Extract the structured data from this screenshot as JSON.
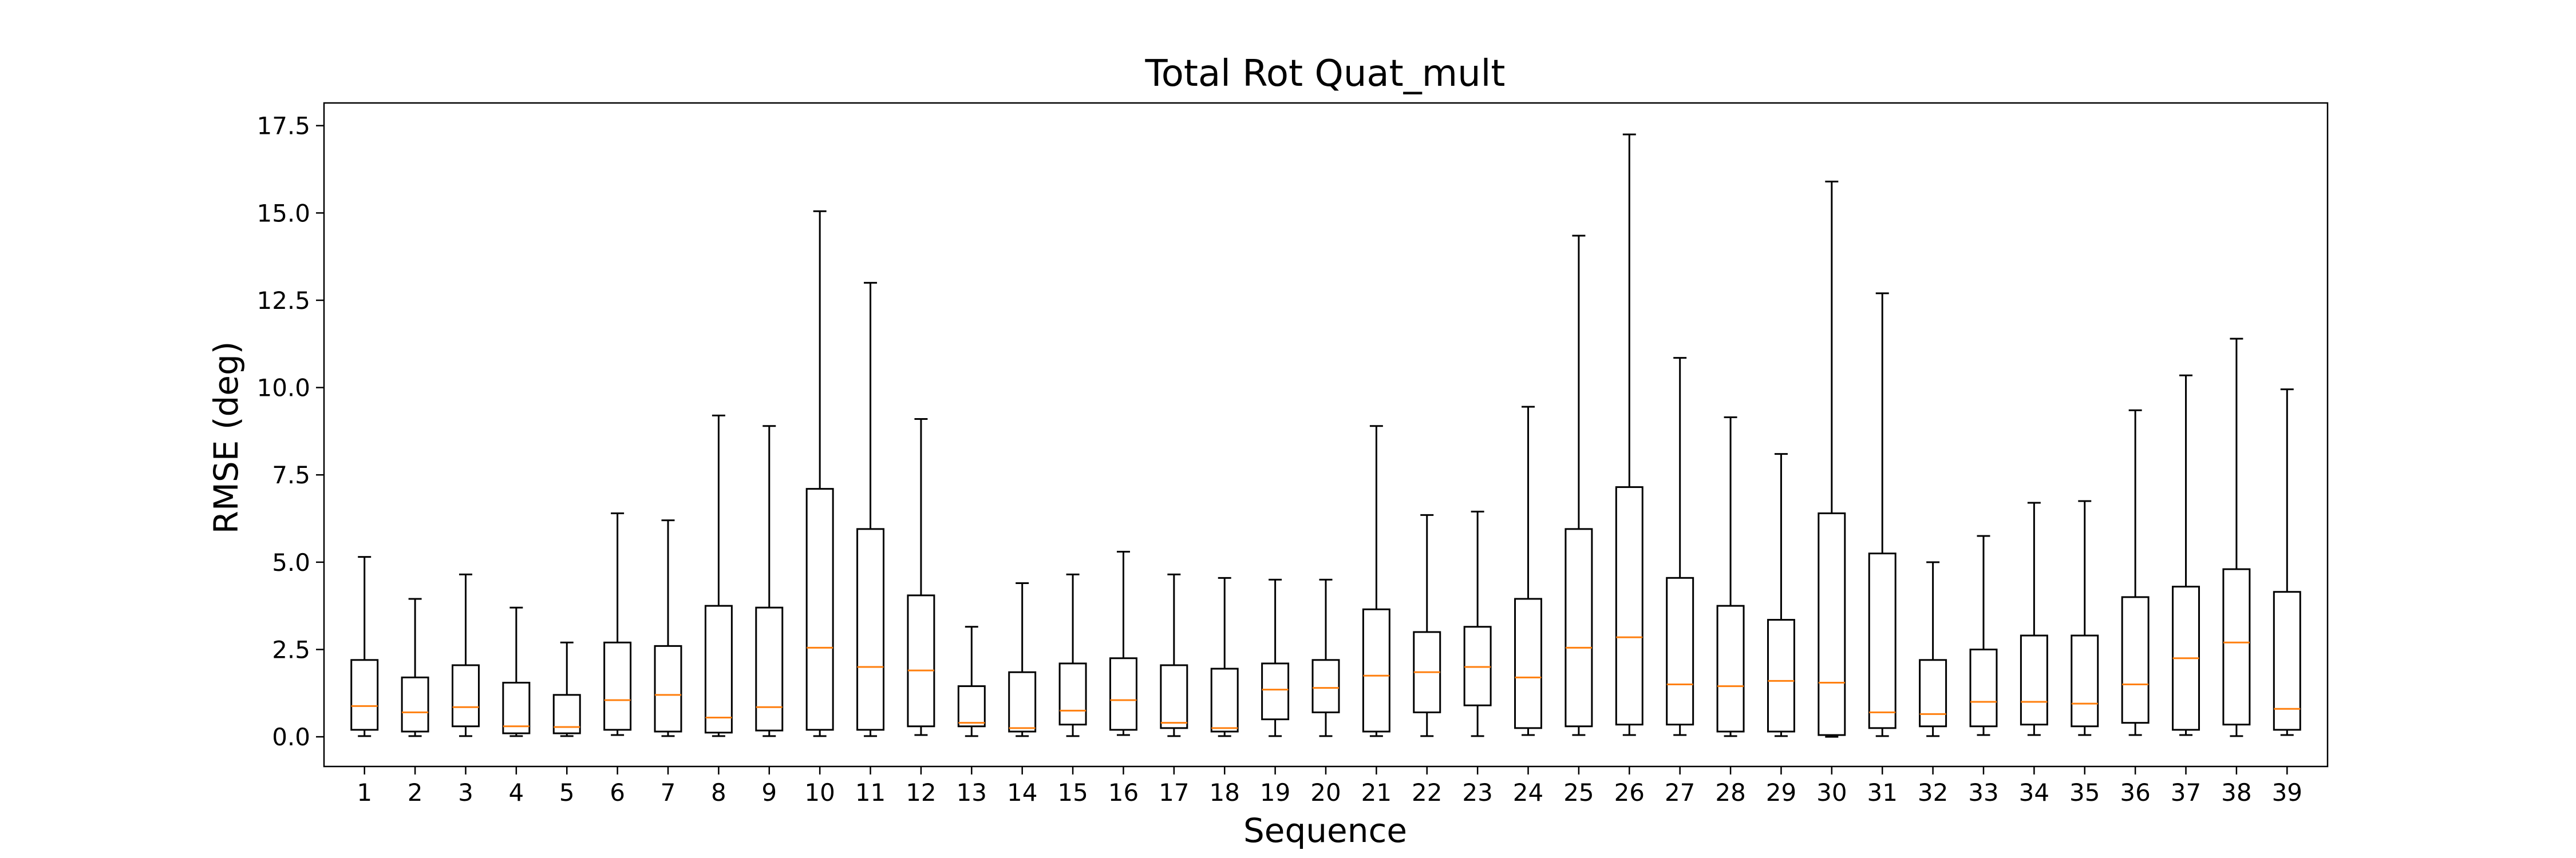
{
  "colors": {
    "box": "#000000",
    "median": "#ff7f0e",
    "background": "#ffffff"
  },
  "chart_data": {
    "type": "box",
    "title": "Total Rot Quat_mult",
    "xlabel": "Sequence",
    "ylabel": "RMSE (deg)",
    "ylim": [
      -0.85,
      18.15
    ],
    "yticks": [
      0.0,
      2.5,
      5.0,
      7.5,
      10.0,
      12.5,
      15.0,
      17.5
    ],
    "ytick_labels": [
      "0.0",
      "2.5",
      "5.0",
      "7.5",
      "10.0",
      "12.5",
      "15.0",
      "17.5"
    ],
    "grid": false,
    "legend": "none",
    "categories": [
      "1",
      "2",
      "3",
      "4",
      "5",
      "6",
      "7",
      "8",
      "9",
      "10",
      "11",
      "12",
      "13",
      "14",
      "15",
      "16",
      "17",
      "18",
      "19",
      "20",
      "21",
      "22",
      "23",
      "24",
      "25",
      "26",
      "27",
      "28",
      "29",
      "30",
      "31",
      "32",
      "33",
      "34",
      "35",
      "36",
      "37",
      "38",
      "39"
    ],
    "boxes": [
      {
        "whislo": 0.02,
        "q1": 0.2,
        "med": 0.88,
        "q3": 2.2,
        "whishi": 5.15
      },
      {
        "whislo": 0.02,
        "q1": 0.15,
        "med": 0.7,
        "q3": 1.7,
        "whishi": 3.95
      },
      {
        "whislo": 0.02,
        "q1": 0.3,
        "med": 0.85,
        "q3": 2.05,
        "whishi": 4.65
      },
      {
        "whislo": 0.02,
        "q1": 0.1,
        "med": 0.3,
        "q3": 1.55,
        "whishi": 3.7
      },
      {
        "whislo": 0.02,
        "q1": 0.1,
        "med": 0.28,
        "q3": 1.2,
        "whishi": 2.7
      },
      {
        "whislo": 0.05,
        "q1": 0.2,
        "med": 1.05,
        "q3": 2.7,
        "whishi": 6.4
      },
      {
        "whislo": 0.02,
        "q1": 0.15,
        "med": 1.2,
        "q3": 2.6,
        "whishi": 6.2
      },
      {
        "whislo": 0.02,
        "q1": 0.12,
        "med": 0.55,
        "q3": 3.75,
        "whishi": 9.2
      },
      {
        "whislo": 0.02,
        "q1": 0.18,
        "med": 0.85,
        "q3": 3.7,
        "whishi": 8.9
      },
      {
        "whislo": 0.02,
        "q1": 0.2,
        "med": 2.55,
        "q3": 7.1,
        "whishi": 15.05
      },
      {
        "whislo": 0.02,
        "q1": 0.2,
        "med": 2.0,
        "q3": 5.95,
        "whishi": 13.0
      },
      {
        "whislo": 0.05,
        "q1": 0.3,
        "med": 1.9,
        "q3": 4.05,
        "whishi": 9.1
      },
      {
        "whislo": 0.02,
        "q1": 0.3,
        "med": 0.4,
        "q3": 1.45,
        "whishi": 3.15
      },
      {
        "whislo": 0.02,
        "q1": 0.15,
        "med": 0.25,
        "q3": 1.85,
        "whishi": 4.4
      },
      {
        "whislo": 0.02,
        "q1": 0.35,
        "med": 0.75,
        "q3": 2.1,
        "whishi": 4.65
      },
      {
        "whislo": 0.05,
        "q1": 0.2,
        "med": 1.05,
        "q3": 2.25,
        "whishi": 5.3
      },
      {
        "whislo": 0.02,
        "q1": 0.25,
        "med": 0.4,
        "q3": 2.05,
        "whishi": 4.65
      },
      {
        "whislo": 0.02,
        "q1": 0.15,
        "med": 0.25,
        "q3": 1.95,
        "whishi": 4.55
      },
      {
        "whislo": 0.02,
        "q1": 0.5,
        "med": 1.35,
        "q3": 2.1,
        "whishi": 4.5
      },
      {
        "whislo": 0.02,
        "q1": 0.7,
        "med": 1.4,
        "q3": 2.2,
        "whishi": 4.5
      },
      {
        "whislo": 0.02,
        "q1": 0.15,
        "med": 1.75,
        "q3": 3.65,
        "whishi": 8.9
      },
      {
        "whislo": 0.02,
        "q1": 0.7,
        "med": 1.85,
        "q3": 3.0,
        "whishi": 6.35
      },
      {
        "whislo": 0.02,
        "q1": 0.9,
        "med": 2.0,
        "q3": 3.15,
        "whishi": 6.45
      },
      {
        "whislo": 0.05,
        "q1": 0.25,
        "med": 1.7,
        "q3": 3.95,
        "whishi": 9.45
      },
      {
        "whislo": 0.05,
        "q1": 0.3,
        "med": 2.55,
        "q3": 5.95,
        "whishi": 14.35
      },
      {
        "whislo": 0.05,
        "q1": 0.35,
        "med": 2.85,
        "q3": 7.15,
        "whishi": 17.25
      },
      {
        "whislo": 0.05,
        "q1": 0.35,
        "med": 1.5,
        "q3": 4.55,
        "whishi": 10.85
      },
      {
        "whislo": 0.02,
        "q1": 0.15,
        "med": 1.45,
        "q3": 3.75,
        "whishi": 9.15
      },
      {
        "whislo": 0.02,
        "q1": 0.15,
        "med": 1.6,
        "q3": 3.35,
        "whishi": 8.1
      },
      {
        "whislo": 0.0,
        "q1": 0.05,
        "med": 1.55,
        "q3": 6.4,
        "whishi": 15.9
      },
      {
        "whislo": 0.02,
        "q1": 0.25,
        "med": 0.7,
        "q3": 5.25,
        "whishi": 12.7
      },
      {
        "whislo": 0.02,
        "q1": 0.3,
        "med": 0.65,
        "q3": 2.2,
        "whishi": 5.0
      },
      {
        "whislo": 0.05,
        "q1": 0.3,
        "med": 1.0,
        "q3": 2.5,
        "whishi": 5.75
      },
      {
        "whislo": 0.05,
        "q1": 0.35,
        "med": 1.0,
        "q3": 2.9,
        "whishi": 6.7
      },
      {
        "whislo": 0.05,
        "q1": 0.3,
        "med": 0.95,
        "q3": 2.9,
        "whishi": 6.75
      },
      {
        "whislo": 0.05,
        "q1": 0.4,
        "med": 1.5,
        "q3": 4.0,
        "whishi": 9.35
      },
      {
        "whislo": 0.05,
        "q1": 0.2,
        "med": 2.25,
        "q3": 4.3,
        "whishi": 10.35
      },
      {
        "whislo": 0.02,
        "q1": 0.35,
        "med": 2.7,
        "q3": 4.8,
        "whishi": 11.4
      },
      {
        "whislo": 0.05,
        "q1": 0.2,
        "med": 0.8,
        "q3": 4.15,
        "whishi": 9.95
      }
    ]
  }
}
